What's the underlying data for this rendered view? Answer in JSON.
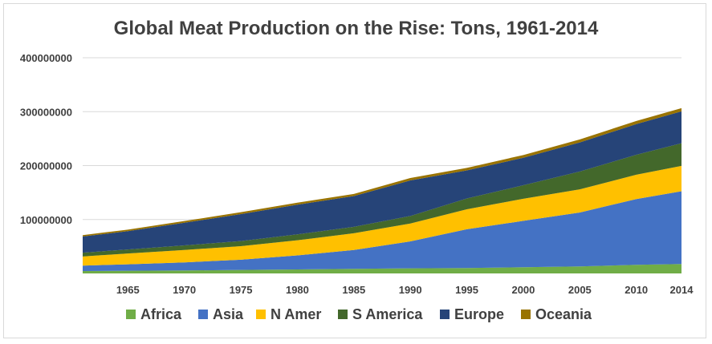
{
  "chart_data": {
    "type": "area",
    "stacked": true,
    "title": "Global Meat Production on the Rise: Tons, 1961-2014",
    "xlabel": "",
    "ylabel": "",
    "ylim": [
      0,
      400000000
    ],
    "xlim": [
      1961,
      2014
    ],
    "y_ticks": [
      "400000000",
      "300000000",
      "200000000",
      "100000000"
    ],
    "x_ticks": [
      "1965",
      "1970",
      "1975",
      "1980",
      "1985",
      "1990",
      "1995",
      "2000",
      "2005",
      "2010",
      "2014"
    ],
    "grid": true,
    "legend_position": "bottom",
    "x": [
      1961,
      1965,
      1970,
      1975,
      1980,
      1985,
      1990,
      1995,
      2000,
      2005,
      2010,
      2014
    ],
    "series": [
      {
        "name": "Africa",
        "color": "#70ad47",
        "values": [
          4500000,
          5000000,
          5500000,
          6500000,
          7500000,
          8500000,
          9500000,
          10000000,
          11500000,
          13000000,
          16000000,
          17500000
        ]
      },
      {
        "name": "Asia",
        "color": "#4472c4",
        "values": [
          10000000,
          12000000,
          15000000,
          19000000,
          26000000,
          35000000,
          50000000,
          72000000,
          86000000,
          100000000,
          122000000,
          135000000
        ]
      },
      {
        "name": "N Amer",
        "color": "#ffc000",
        "values": [
          17000000,
          20000000,
          23000000,
          25000000,
          28000000,
          31000000,
          33000000,
          37000000,
          41000000,
          43000000,
          45000000,
          47000000
        ]
      },
      {
        "name": "S America",
        "color": "#43682b",
        "values": [
          7000000,
          7500000,
          8500000,
          9500000,
          11000000,
          12000000,
          14000000,
          20000000,
          25000000,
          33000000,
          37000000,
          42000000
        ]
      },
      {
        "name": "Europe",
        "color": "#264478",
        "values": [
          30000000,
          34000000,
          42000000,
          50000000,
          55000000,
          57000000,
          66000000,
          52000000,
          51000000,
          54000000,
          57000000,
          59000000
        ]
      },
      {
        "name": "Oceania",
        "color": "#997300",
        "values": [
          2500000,
          2800000,
          3200000,
          3500000,
          3700000,
          3900000,
          4500000,
          4800000,
          5100000,
          5500000,
          5700000,
          6000000
        ]
      }
    ]
  }
}
